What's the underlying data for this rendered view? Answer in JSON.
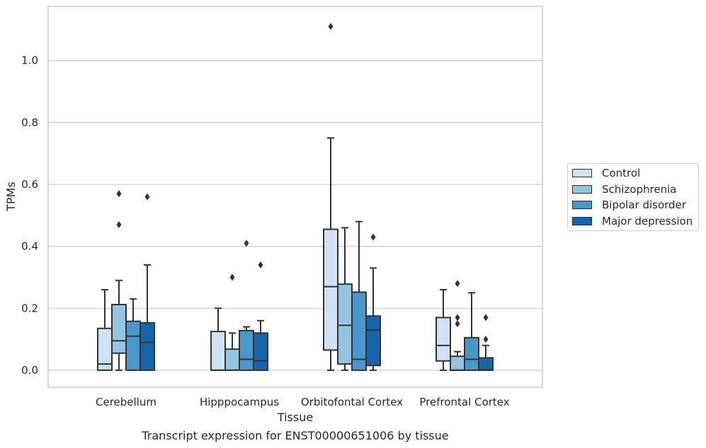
{
  "chart_data": {
    "type": "box",
    "title": "",
    "caption": "Transcript expression for ENST00000651006 by tissue",
    "xlabel": "Tissue",
    "ylabel": "TPMs",
    "ylim": [
      -0.055,
      1.175
    ],
    "yticks": [
      0.0,
      0.2,
      0.4,
      0.6,
      0.8,
      1.0
    ],
    "ytick_labels": [
      "0.0",
      "0.2",
      "0.4",
      "0.6",
      "0.8",
      "1.0"
    ],
    "grid": true,
    "legend_position": "right",
    "categories": [
      "Cerebellum",
      "Hipppocampus",
      "Orbitofontal Cortex",
      "Prefrontal Cortex"
    ],
    "series": [
      {
        "name": "Control",
        "color": "#d0e1f2",
        "boxes": [
          {
            "whisker_low": 0.0,
            "q1": 0.0,
            "median": 0.02,
            "q3": 0.135,
            "whisker_high": 0.26,
            "outliers": []
          },
          {
            "whisker_low": 0.0,
            "q1": 0.0,
            "median": 0.0,
            "q3": 0.125,
            "whisker_high": 0.2,
            "outliers": []
          },
          {
            "whisker_low": 0.0,
            "q1": 0.065,
            "median": 0.27,
            "q3": 0.455,
            "whisker_high": 0.75,
            "outliers": [
              1.11
            ]
          },
          {
            "whisker_low": 0.0,
            "q1": 0.03,
            "median": 0.08,
            "q3": 0.17,
            "whisker_high": 0.26,
            "outliers": []
          }
        ]
      },
      {
        "name": "Schizophrenia",
        "color": "#94c4df",
        "boxes": [
          {
            "whisker_low": 0.0,
            "q1": 0.055,
            "median": 0.095,
            "q3": 0.212,
            "whisker_high": 0.29,
            "outliers": [
              0.47,
              0.57
            ]
          },
          {
            "whisker_low": 0.0,
            "q1": 0.0,
            "median": 0.0,
            "q3": 0.068,
            "whisker_high": 0.12,
            "outliers": [
              0.3
            ]
          },
          {
            "whisker_low": 0.0,
            "q1": 0.02,
            "median": 0.145,
            "q3": 0.278,
            "whisker_high": 0.46,
            "outliers": []
          },
          {
            "whisker_low": 0.0,
            "q1": 0.0,
            "median": 0.0,
            "q3": 0.045,
            "whisker_high": 0.06,
            "outliers": [
              0.15,
              0.17,
              0.28
            ]
          }
        ]
      },
      {
        "name": "Bipolar disorder",
        "color": "#4a98c9",
        "boxes": [
          {
            "whisker_low": 0.0,
            "q1": 0.0,
            "median": 0.11,
            "q3": 0.158,
            "whisker_high": 0.23,
            "outliers": []
          },
          {
            "whisker_low": 0.0,
            "q1": 0.0,
            "median": 0.035,
            "q3": 0.128,
            "whisker_high": 0.14,
            "outliers": [
              0.41
            ]
          },
          {
            "whisker_low": 0.0,
            "q1": 0.0,
            "median": 0.035,
            "q3": 0.252,
            "whisker_high": 0.48,
            "outliers": []
          },
          {
            "whisker_low": 0.0,
            "q1": 0.0,
            "median": 0.035,
            "q3": 0.105,
            "whisker_high": 0.25,
            "outliers": []
          }
        ]
      },
      {
        "name": "Major depression",
        "color": "#1764ab",
        "boxes": [
          {
            "whisker_low": 0.0,
            "q1": 0.0,
            "median": 0.09,
            "q3": 0.153,
            "whisker_high": 0.34,
            "outliers": [
              0.56
            ]
          },
          {
            "whisker_low": 0.0,
            "q1": 0.0,
            "median": 0.03,
            "q3": 0.12,
            "whisker_high": 0.16,
            "outliers": [
              0.34
            ]
          },
          {
            "whisker_low": 0.0,
            "q1": 0.015,
            "median": 0.13,
            "q3": 0.175,
            "whisker_high": 0.33,
            "outliers": [
              0.43
            ]
          },
          {
            "whisker_low": 0.0,
            "q1": 0.0,
            "median": 0.0,
            "q3": 0.04,
            "whisker_high": 0.08,
            "outliers": [
              0.1,
              0.17
            ]
          }
        ]
      }
    ]
  }
}
